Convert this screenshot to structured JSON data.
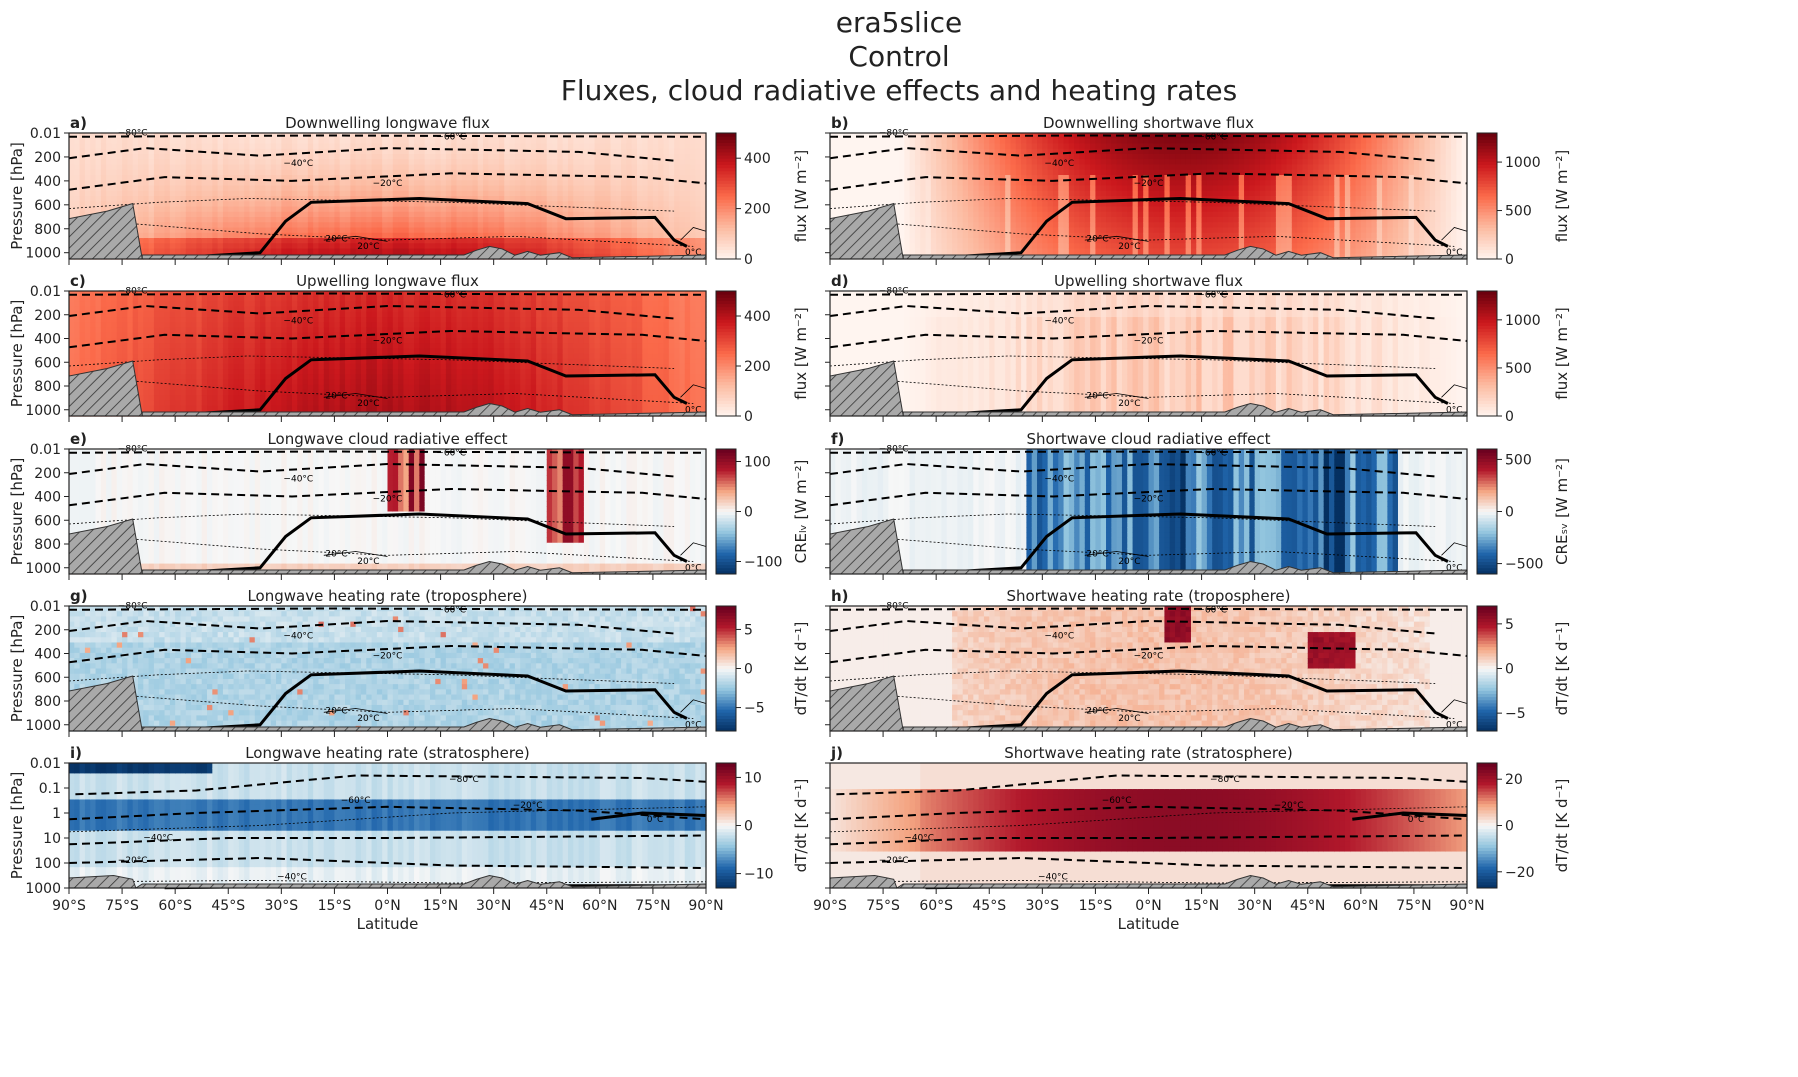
{
  "figure": {
    "suptitle": [
      "era5slice",
      "Control",
      "Fluxes, cloud radiative effects and heating rates"
    ]
  },
  "chart_data": [
    {
      "type": "heatmap",
      "letter": "a)",
      "title": "Downwelling longwave flux",
      "cmap": "Reds",
      "clim": [
        0,
        500
      ],
      "cbar_ticks": [
        "0",
        "200",
        "400"
      ],
      "cbar_tick_values": [
        0,
        200,
        400
      ],
      "cbar_label": "flux [W m⁻²]",
      "ylabel": "Pressure [hPa]",
      "yticks": [
        "0.01",
        "200",
        "400",
        "600",
        "800",
        "1000"
      ],
      "xticks_visible": false
    },
    {
      "type": "heatmap",
      "letter": "b)",
      "title": "Downwelling shortwave flux",
      "cmap": "Reds",
      "clim": [
        0,
        1300
      ],
      "cbar_ticks": [
        "0",
        "500",
        "1000"
      ],
      "cbar_tick_values": [
        0,
        500,
        1000
      ],
      "cbar_label": "flux [W m⁻²]",
      "ylabel": "",
      "yticks": [],
      "xticks_visible": false
    },
    {
      "type": "heatmap",
      "letter": "c)",
      "title": "Upwelling longwave flux",
      "cmap": "Reds",
      "clim": [
        0,
        500
      ],
      "cbar_ticks": [
        "0",
        "200",
        "400"
      ],
      "cbar_tick_values": [
        0,
        200,
        400
      ],
      "cbar_label": "flux [W m⁻²]",
      "ylabel": "Pressure [hPa]",
      "yticks": [
        "0.01",
        "200",
        "400",
        "600",
        "800",
        "1000"
      ],
      "xticks_visible": false
    },
    {
      "type": "heatmap",
      "letter": "d)",
      "title": "Upwelling shortwave flux",
      "cmap": "Reds",
      "clim": [
        0,
        1300
      ],
      "cbar_ticks": [
        "0",
        "500",
        "1000"
      ],
      "cbar_tick_values": [
        0,
        500,
        1000
      ],
      "cbar_label": "flux [W m⁻²]",
      "ylabel": "",
      "yticks": [],
      "xticks_visible": false
    },
    {
      "type": "heatmap",
      "letter": "e)",
      "title": "Longwave cloud radiative effect",
      "cmap": "RdBu_r",
      "clim": [
        -125,
        125
      ],
      "cbar_ticks": [
        "−100",
        "0",
        "100"
      ],
      "cbar_tick_values": [
        -100,
        0,
        100
      ],
      "cbar_label": "CREₗᵥ [W m⁻²]",
      "ylabel": "Pressure [hPa]",
      "yticks": [
        "0.01",
        "200",
        "400",
        "600",
        "800",
        "1000"
      ],
      "xticks_visible": false
    },
    {
      "type": "heatmap",
      "letter": "f)",
      "title": "Shortwave cloud radiative effect",
      "cmap": "RdBu_r",
      "clim": [
        -600,
        600
      ],
      "cbar_ticks": [
        "−500",
        "0",
        "500"
      ],
      "cbar_tick_values": [
        -500,
        0,
        500
      ],
      "cbar_label": "CREₛᵥ [W m⁻²]",
      "ylabel": "",
      "yticks": [],
      "xticks_visible": false
    },
    {
      "type": "heatmap",
      "letter": "g)",
      "title": "Longwave heating rate (troposphere)",
      "cmap": "RdBu_r",
      "clim": [
        -8,
        8
      ],
      "cbar_ticks": [
        "−5",
        "0",
        "5"
      ],
      "cbar_tick_values": [
        -5,
        0,
        5
      ],
      "cbar_label": "dT/dt [K d⁻¹]",
      "ylabel": "Pressure [hPa]",
      "yticks": [
        "0.01",
        "200",
        "400",
        "600",
        "800",
        "1000"
      ],
      "xticks_visible": false
    },
    {
      "type": "heatmap",
      "letter": "h)",
      "title": "Shortwave heating rate (troposphere)",
      "cmap": "RdBu_r",
      "clim": [
        -7,
        7
      ],
      "cbar_ticks": [
        "−5",
        "0",
        "5"
      ],
      "cbar_tick_values": [
        -5,
        0,
        5
      ],
      "cbar_label": "dT/dt [K d⁻¹]",
      "ylabel": "",
      "yticks": [],
      "xticks_visible": false
    },
    {
      "type": "heatmap",
      "letter": "i)",
      "title": "Longwave heating rate (stratosphere)",
      "cmap": "RdBu_r",
      "clim": [
        -13,
        13
      ],
      "cbar_ticks": [
        "−10",
        "0",
        "10"
      ],
      "cbar_tick_values": [
        -10,
        0,
        10
      ],
      "cbar_label": "dT/dt [K d⁻¹]",
      "ylabel": "Pressure [hPa]",
      "yticks": [
        "0.01",
        "0.1",
        "1",
        "10",
        "100",
        "1000"
      ],
      "xticks_visible": true,
      "xlabel": "Latitude"
    },
    {
      "type": "heatmap",
      "letter": "j)",
      "title": "Shortwave heating rate (stratosphere)",
      "cmap": "RdBu_r",
      "clim": [
        -27,
        27
      ],
      "cbar_ticks": [
        "−20",
        "0",
        "20"
      ],
      "cbar_tick_values": [
        -20,
        0,
        20
      ],
      "cbar_label": "dT/dt [K d⁻¹]",
      "ylabel": "",
      "yticks": [],
      "xticks_visible": true,
      "xlabel": "Latitude"
    }
  ],
  "x_axis": {
    "ticks": [
      "90°S",
      "75°S",
      "60°S",
      "45°S",
      "30°S",
      "15°S",
      "0°N",
      "15°N",
      "30°N",
      "45°N",
      "60°N",
      "75°N",
      "90°N"
    ],
    "label": "Latitude"
  },
  "contour_labels_trop": [
    "−80°C",
    "−60°C",
    "−40°C",
    "−20°C",
    "−40°C",
    "20°C",
    "20°C",
    "0°C"
  ],
  "contour_labels_strat": [
    "−80°C",
    "−60°C",
    "−40°C",
    "−20°C",
    "0°C",
    "−20°C",
    "−40°C",
    "−80°C",
    "−60°C",
    "−40°C",
    "−20°C",
    "20°C",
    "40°C"
  ]
}
